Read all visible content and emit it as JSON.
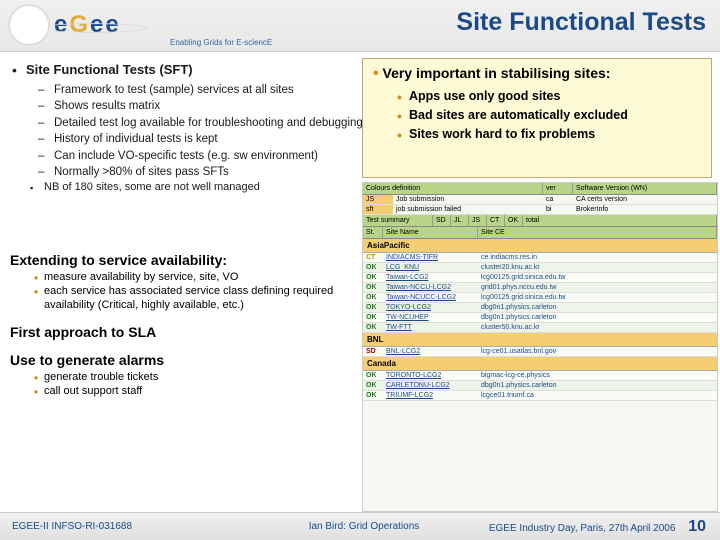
{
  "header": {
    "logo_text": {
      "e1": "e",
      "g": "G",
      "e2": "e",
      "e3": "e"
    },
    "tagline": "Enabling Grids for E-sciencE",
    "title": "Site Functional Tests"
  },
  "sft": {
    "heading": "Site Functional Tests (SFT)",
    "items": [
      "Framework to test (sample) services at all sites",
      "Shows results matrix",
      "Detailed test log available for troubleshooting and debugging",
      "History of individual tests is kept",
      "Can include VO-specific tests (e.g. sw environment)",
      "Normally >80% of sites pass SFTs"
    ],
    "sub": "NB of 180 sites, some are not well managed"
  },
  "importance": {
    "heading": "Very important in stabilising sites:",
    "items": [
      "Apps use only good sites",
      "Bad sites are automatically excluded",
      "Sites work hard to fix problems"
    ]
  },
  "lower": {
    "extend": {
      "heading": "Extending to service availability:",
      "items": [
        "measure availability by service, site, VO",
        "each service has associated service class defining required availability (Critical, highly available, etc.)"
      ]
    },
    "sla": {
      "heading": "First approach to SLA"
    },
    "alarms": {
      "heading": "Use to generate alarms",
      "items": [
        "generate trouble tickets",
        "call out support staff"
      ]
    }
  },
  "matrix": {
    "colors_header": "Colours definition",
    "col_ver": "ver",
    "col_wn": "Software Version (WN)",
    "col_js": "JS",
    "col_js_text": "Job submission",
    "col_ca": "ca",
    "col_ca_text": "CA certs version",
    "col_sft": "sft",
    "col_sft_text": "job submission failed",
    "col_bi": "bi",
    "col_bi_text": "BrokerInfo",
    "test_summary": "Test summary",
    "regions": [
      {
        "name": "AsiaPacific",
        "rows": [
          {
            "st": "CT",
            "site": "INDIACMS-TIFR",
            "ce": "ce.indiacms.res.in"
          },
          {
            "st": "OK",
            "site": "LCG_KNU",
            "ce": "cluster20.knu.ac.kr"
          },
          {
            "st": "OK",
            "site": "Taiwan-LCG2",
            "ce": "lcg00125.grid.sinica.edu.tw"
          },
          {
            "st": "OK",
            "site": "Taiwan-NCCU-LCG2",
            "ce": "grid01.phys.nccu.edu.tw"
          },
          {
            "st": "OK",
            "site": "Taiwan-NCUCC-LCG2",
            "ce": "lcg00125.grid.sinica.edu.tw"
          },
          {
            "st": "OK",
            "site": "TOKYO-LCG2",
            "ce": "dbg0n1.physics.carleton"
          },
          {
            "st": "OK",
            "site": "TW-NCUHEP",
            "ce": "dbg0n1.physics.carleton"
          },
          {
            "st": "OK",
            "site": "TW-FTT",
            "ce": "cluster50.knu.ac.kr"
          }
        ]
      },
      {
        "name": "BNL",
        "rows": [
          {
            "st": "SD",
            "site": "BNL-LCG2",
            "ce": "lcg-ce01.usatlas.bnl.gov"
          }
        ]
      },
      {
        "name": "Canada",
        "rows": [
          {
            "st": "OK",
            "site": "TORONTO-LCG2",
            "ce": "bigmac-lcg-ce.physics"
          },
          {
            "st": "OK",
            "site": "CARLETONU-LCG2",
            "ce": "dbg0n1.physics.carleton"
          },
          {
            "st": "OK",
            "site": "TRIUMF-LCG2",
            "ce": "lcgce01.triumf.ca"
          }
        ]
      }
    ]
  },
  "footer": {
    "left": "EGEE-II INFSO-RI-031688",
    "mid": "Ian Bird: Grid Operations",
    "right": "EGEE Industry Day, Paris, 27th April 2006",
    "page": "10"
  },
  "styling": {
    "title_color": "#1a4a8a",
    "highlight_bg": "#fff9d6",
    "bullet_accent": "#d68c1a",
    "matrix_header_bg": "#b8d488",
    "matrix_section_bg": "#f5ce73",
    "status_ok_color": "#1a7a1a",
    "status_ct_color": "#cc8800",
    "status_sd_color": "#aa0000"
  }
}
